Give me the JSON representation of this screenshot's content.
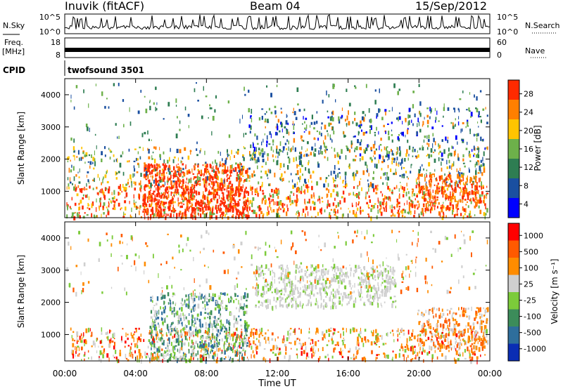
{
  "header": {
    "radar": "Inuvik (fitACF)",
    "beam": "Beam 04",
    "date": "15/Sep/2012"
  },
  "colors": {
    "power_scale": [
      "#0000ff",
      "#1a4fa0",
      "#2e7d52",
      "#6db04a",
      "#ffc400",
      "#ff7f00",
      "#ff2a00"
    ],
    "velocity_scale": [
      "#0a2db4",
      "#2e6e9c",
      "#3c8c5a",
      "#7ccb3a",
      "#cfcfcf",
      "#ff8c00",
      "#ff5a00",
      "#ff0000"
    ]
  },
  "chart_data": [
    {
      "type": "line",
      "panel": "noise",
      "left_label": "N.Sky",
      "right_label": "N.Search",
      "left_ticks": [
        "10^5",
        "10^0"
      ],
      "right_ticks": [
        "10^5",
        "10^0"
      ],
      "note": "noise trace, black, near 10^0 with frequent spikes to 10^5"
    },
    {
      "type": "line",
      "panel": "frequency",
      "left_label": "Freq.",
      "left_unit": "[MHz]",
      "left_ticks": [
        "18",
        "8"
      ],
      "right_label": "Nave",
      "right_ticks": [
        "60",
        "0"
      ],
      "note": "nearly constant frequency band around 10 MHz"
    },
    {
      "type": "table",
      "panel": "cpid",
      "label": "CPID",
      "value": "twofsound 3501"
    },
    {
      "type": "heatmap",
      "panel": "power",
      "ylabel": "Slant Range [km]",
      "yticks": [
        1000,
        2000,
        3000,
        4000
      ],
      "ylim": [
        180,
        4500
      ],
      "xlim": [
        0,
        24
      ],
      "colorbar_label": "Power [dB]",
      "colorbar_ticks": [
        "28",
        "24",
        "20",
        "16",
        "12",
        "8",
        "4"
      ],
      "clim": [
        0,
        30
      ]
    },
    {
      "type": "heatmap",
      "panel": "velocity",
      "ylabel": "Slant Range [km]",
      "yticks": [
        1000,
        2000,
        3000,
        4000
      ],
      "ylim": [
        180,
        4500
      ],
      "xlim": [
        0,
        24
      ],
      "xlabel": "Time UT",
      "xticks": [
        "00:00",
        "04:00",
        "08:00",
        "12:00",
        "16:00",
        "20:00",
        "00:00"
      ],
      "colorbar_label": "Velocity [m s⁻¹]",
      "colorbar_ticks": [
        "1000",
        "500",
        "100",
        "25",
        "-25",
        "-100",
        "-500",
        "-1000"
      ],
      "clim": [
        -1000,
        1000
      ]
    }
  ]
}
